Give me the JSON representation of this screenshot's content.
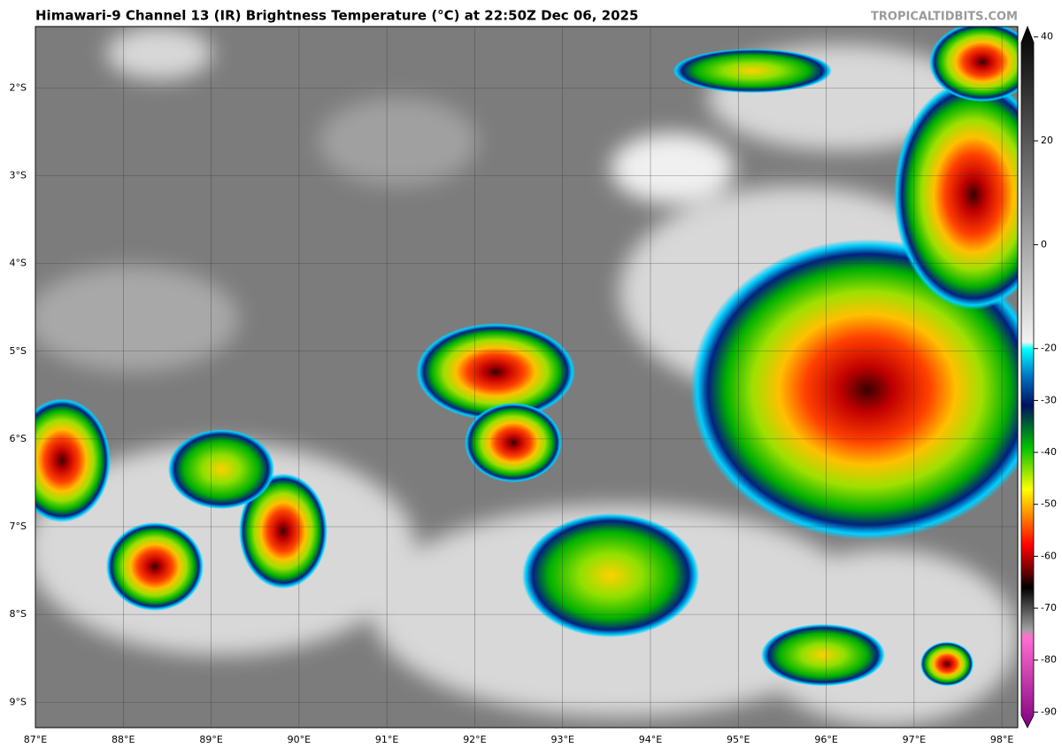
{
  "title": "Himawari-9 Channel 13 (IR) Brightness Temperature (°C) at 22:50Z Dec 06, 2025",
  "credit": "TROPICALTIDBITS.COM",
  "map": {
    "xlim": [
      87,
      98.18
    ],
    "ylim": [
      -9.29,
      -1.3
    ],
    "xticks": [
      {
        "value": 87,
        "label": "87°E"
      },
      {
        "value": 88,
        "label": "88°E"
      },
      {
        "value": 89,
        "label": "89°E"
      },
      {
        "value": 90,
        "label": "90°E"
      },
      {
        "value": 91,
        "label": "91°E"
      },
      {
        "value": 92,
        "label": "92°E"
      },
      {
        "value": 93,
        "label": "93°E"
      },
      {
        "value": 94,
        "label": "94°E"
      },
      {
        "value": 95,
        "label": "95°E"
      },
      {
        "value": 96,
        "label": "96°E"
      },
      {
        "value": 97,
        "label": "97°E"
      },
      {
        "value": 98,
        "label": "98°E"
      }
    ],
    "yticks": [
      {
        "value": -2,
        "label": "2°S"
      },
      {
        "value": -3,
        "label": "3°S"
      },
      {
        "value": -4,
        "label": "4°S"
      },
      {
        "value": -5,
        "label": "5°S"
      },
      {
        "value": -6,
        "label": "6°S"
      },
      {
        "value": -7,
        "label": "7°S"
      },
      {
        "value": -8,
        "label": "8°S"
      },
      {
        "value": -9,
        "label": "9°S"
      }
    ],
    "grid": true
  },
  "colorbar": {
    "lim": [
      -93,
      42
    ],
    "ticks": [
      40,
      20,
      0,
      -20,
      -30,
      -40,
      -50,
      -60,
      -70,
      -80,
      -90
    ]
  }
}
